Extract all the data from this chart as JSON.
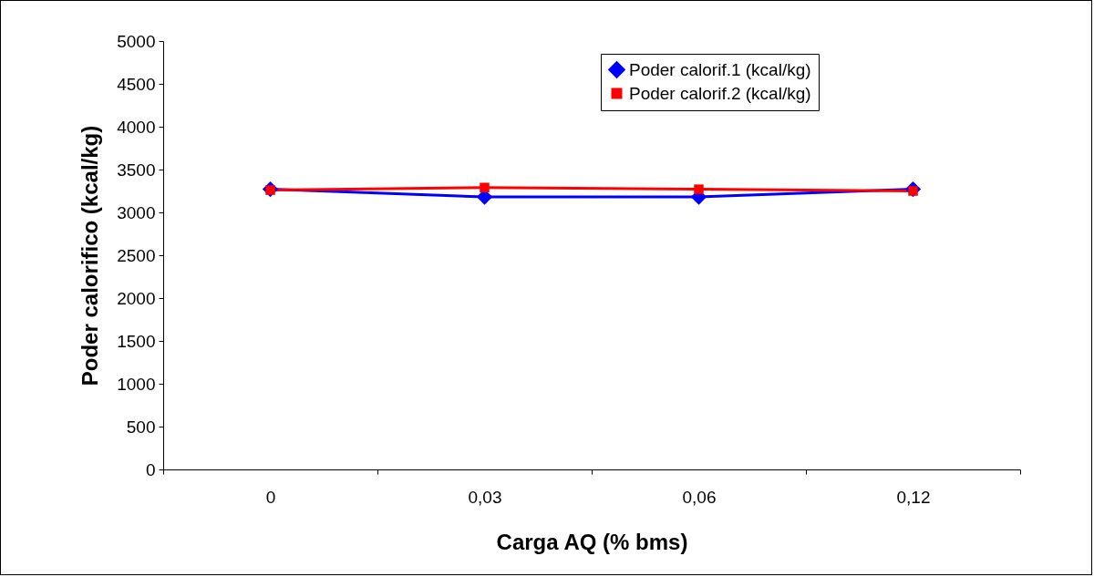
{
  "chart_data": {
    "type": "line",
    "xlabel": "Carga AQ (% bms)",
    "ylabel": "Poder calorifico (kcal/kg)",
    "categories": [
      "0",
      "0,03",
      "0,06",
      "0,12"
    ],
    "series": [
      {
        "name": "Poder calorif.1 (kcal/kg)",
        "color": "#0000ff",
        "marker": "diamond",
        "values": [
          3270,
          3180,
          3180,
          3270
        ]
      },
      {
        "name": "Poder calorif.2 (kcal/kg)",
        "color": "#ff0000",
        "marker": "square",
        "values": [
          3260,
          3290,
          3270,
          3250
        ]
      }
    ],
    "ylim": [
      0,
      5000
    ],
    "yticks": [
      0,
      500,
      1000,
      1500,
      2000,
      2500,
      3000,
      3500,
      4000,
      4500,
      5000
    ],
    "grid": false,
    "legend": "top right",
    "line_style": "solid"
  }
}
